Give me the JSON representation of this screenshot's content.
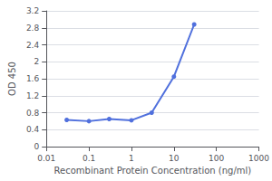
{
  "chart_data": {
    "type": "line",
    "x": [
      0.03,
      0.1,
      0.3,
      1,
      3,
      10,
      30
    ],
    "values": [
      0.63,
      0.6,
      0.65,
      0.62,
      0.8,
      1.65,
      2.88
    ],
    "marker": "circle",
    "xlabel": "Recombinant Protein Concentration (ng/ml)",
    "ylabel": "OD 450",
    "log": "x",
    "xlim": [
      0.01,
      1000
    ],
    "xticks": [
      0.01,
      0.1,
      1,
      10,
      100,
      1000
    ],
    "ylim": [
      0,
      3.2
    ],
    "yticks": [
      0,
      0.4,
      0.8,
      1.2,
      1.6,
      2,
      2.4,
      2.8,
      3.2
    ],
    "grid": true
  }
}
